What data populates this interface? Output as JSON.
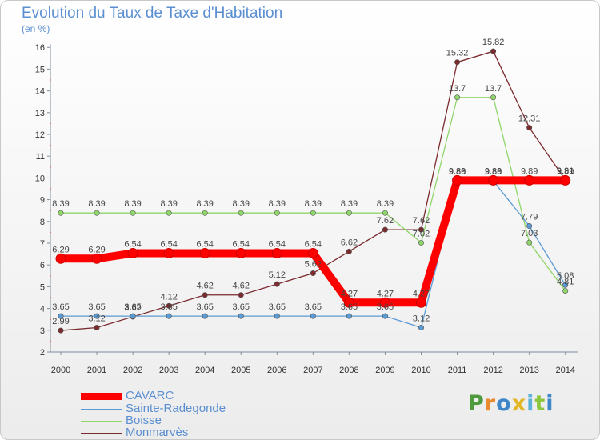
{
  "header": {
    "title": "Evolution du Taux de Taxe d'Habitation",
    "subtitle": "(en %)"
  },
  "logo": {
    "letters": [
      "P",
      "r",
      "o",
      "x",
      "i",
      "t",
      "i"
    ],
    "colors": [
      "#4f9a3c",
      "#e98a2e",
      "#3d87c9",
      "#e2b624",
      "#5db2d9",
      "#8cc63f",
      "#3d87c9"
    ]
  },
  "chart_data": {
    "type": "line",
    "x": [
      "2000",
      "2001",
      "2002",
      "2003",
      "2004",
      "2005",
      "2006",
      "2007",
      "2008",
      "2009",
      "2010",
      "2011",
      "2012",
      "2013",
      "2014"
    ],
    "ylim": [
      2,
      16
    ],
    "yticks": [
      "2",
      "3",
      "4",
      "5",
      "6",
      "7",
      "8",
      "9",
      "10",
      "11",
      "12",
      "13",
      "14",
      "15",
      "16"
    ],
    "grid": false,
    "legend_position": "bottom-left",
    "series": [
      {
        "name": "Monmarvès",
        "color": "#7b2a2e",
        "values": [
          2.99,
          3.12,
          3.62,
          4.12,
          4.62,
          4.62,
          5.12,
          5.62,
          6.62,
          7.62,
          7.62,
          15.32,
          15.82,
          12.31,
          9.91
        ],
        "labels": [
          "2.99",
          "3.12",
          "3.62",
          "4.12",
          "4.62",
          "4.62",
          "5.12",
          "5.62",
          "6.62",
          "7.62",
          "7.62",
          "15.32",
          "15.82",
          "12.31",
          "9.91"
        ]
      },
      {
        "name": "Boisse",
        "color": "#8fd66b",
        "values": [
          8.39,
          8.39,
          8.39,
          8.39,
          8.39,
          8.39,
          8.39,
          8.39,
          8.39,
          8.39,
          7.02,
          13.7,
          13.7,
          7.03,
          4.81
        ],
        "labels": [
          "8.39",
          "8.39",
          "8.39",
          "8.39",
          "8.39",
          "8.39",
          "8.39",
          "8.39",
          "8.39",
          "8.39",
          "7.02",
          "13.7",
          "13.7",
          "7.03",
          "4.81"
        ]
      },
      {
        "name": "Sainte-Radegonde",
        "color": "#5b9bd5",
        "values": [
          3.65,
          3.65,
          3.65,
          3.65,
          3.65,
          3.65,
          3.65,
          3.65,
          3.65,
          3.65,
          3.12,
          9.86,
          9.86,
          7.79,
          5.08
        ],
        "labels": [
          "3.65",
          "3.65",
          "3.65",
          "3.65",
          "3.65",
          "3.65",
          "3.65",
          "3.65",
          "3.65",
          "3.65",
          "3.12",
          "9.86",
          "9.86",
          "7.79",
          "5.08"
        ]
      },
      {
        "name": "CAVARC",
        "color": "#ff0000",
        "values": [
          6.29,
          6.29,
          6.54,
          6.54,
          6.54,
          6.54,
          6.54,
          6.54,
          4.27,
          4.27,
          4.27,
          9.89,
          9.89,
          9.89,
          9.89
        ],
        "labels": [
          "6.29",
          "6.29",
          "6.54",
          "6.54",
          "6.54",
          "6.54",
          "6.54",
          "6.54",
          "4.27",
          "4.27",
          "4.27",
          "9.89",
          "9.89",
          "9.89",
          "9.89"
        ]
      }
    ]
  },
  "legend": [
    {
      "name": "CAVARC",
      "color": "#ff0000",
      "thick": true
    },
    {
      "name": "Sainte-Radegonde",
      "color": "#5b9bd5",
      "thick": false
    },
    {
      "name": "Boisse",
      "color": "#8fd66b",
      "thick": false
    },
    {
      "name": "Monmarvès",
      "color": "#7b2a2e",
      "thick": false
    }
  ]
}
